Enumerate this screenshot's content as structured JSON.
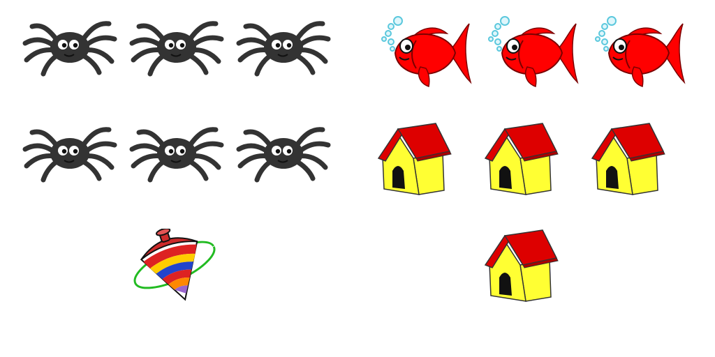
{
  "groups": [
    {
      "id": "spiders",
      "icon": "spider-icon",
      "count": 6,
      "color": "#333333"
    },
    {
      "id": "fish",
      "icon": "goldfish-icon",
      "count": 3,
      "color": "#ff0000"
    },
    {
      "id": "doghouses",
      "icon": "doghouse-icon",
      "count": 4,
      "color": "#ff0000"
    },
    {
      "id": "tops",
      "icon": "spinning-top-icon",
      "count": 1,
      "color": "#cc2b2b"
    }
  ]
}
